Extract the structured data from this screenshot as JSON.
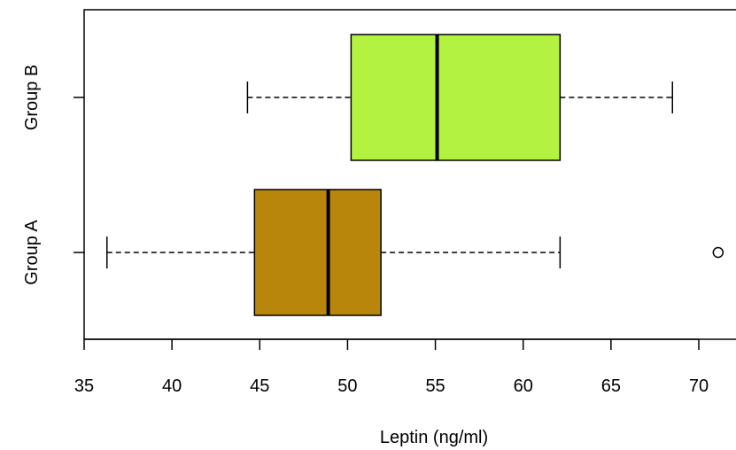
{
  "chart_data": {
    "type": "boxplot",
    "orientation": "horizontal",
    "xlabel": "Leptin (ng/ml)",
    "xlim": [
      35,
      72
    ],
    "x_ticks": [
      35,
      40,
      45,
      50,
      55,
      60,
      65,
      70
    ],
    "x_tick_labels": [
      "35",
      "40",
      "45",
      "50",
      "55",
      "60",
      "65",
      "70"
    ],
    "groups": [
      {
        "label": "Group A",
        "whisker_low": 36.3,
        "q1": 44.7,
        "median": 48.9,
        "q3": 51.9,
        "whisker_high": 62.1,
        "outliers": [
          71.1
        ],
        "color": "#b8860b"
      },
      {
        "label": "Group B",
        "whisker_low": 44.3,
        "q1": 50.2,
        "median": 55.1,
        "q3": 62.1,
        "whisker_high": 68.5,
        "outliers": [],
        "color": "#b3f241"
      }
    ],
    "grid": false,
    "legend": "none"
  }
}
